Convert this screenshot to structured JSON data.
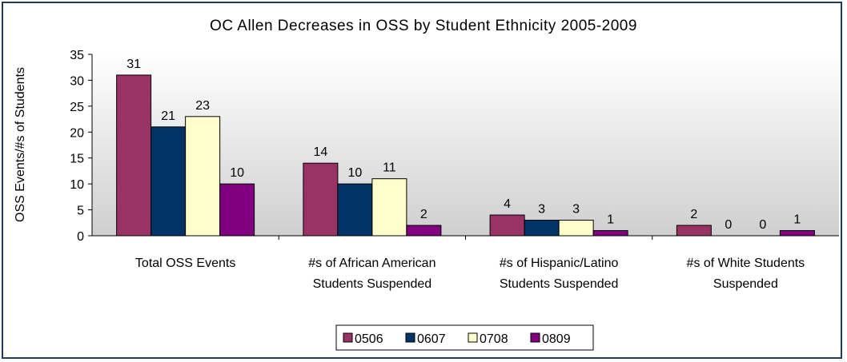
{
  "chart_data": {
    "type": "bar",
    "title": "OC Allen Decreases in OSS by Student Ethnicity 2005-2009",
    "ylabel": "OSS Events/#s of Students",
    "xlabel": "",
    "ylim": [
      0,
      35
    ],
    "yticks": [
      0,
      5,
      10,
      15,
      20,
      25,
      30,
      35
    ],
    "grid": false,
    "legend_position": "bottom",
    "categories": [
      [
        "Total OSS Events"
      ],
      [
        "#s of African American",
        "Students Suspended"
      ],
      [
        "#s of Hispanic/Latino",
        "Students Suspended"
      ],
      [
        "#s of White Students",
        "Suspended"
      ]
    ],
    "series": [
      {
        "name": "0506",
        "color": "#993366",
        "values": [
          31,
          14,
          4,
          2
        ]
      },
      {
        "name": "0607",
        "color": "#003366",
        "values": [
          21,
          10,
          3,
          0
        ]
      },
      {
        "name": "0708",
        "color": "#ffffcc",
        "values": [
          23,
          11,
          3,
          0
        ]
      },
      {
        "name": "0809",
        "color": "#800080",
        "values": [
          10,
          2,
          1,
          1
        ]
      }
    ]
  }
}
